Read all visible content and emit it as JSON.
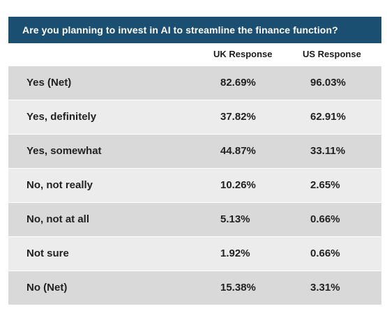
{
  "chart_data": {
    "type": "table",
    "title": "Are you planning to invest in AI to streamline the finance function?",
    "columns": [
      "UK Response",
      "US Response"
    ],
    "rows": [
      {
        "label": "Yes (Net)",
        "uk": "82.69%",
        "us": "96.03%"
      },
      {
        "label": "Yes, definitely",
        "uk": "37.82%",
        "us": "62.91%"
      },
      {
        "label": "Yes, somewhat",
        "uk": "44.87%",
        "us": "33.11%"
      },
      {
        "label": "No, not really",
        "uk": "10.26%",
        "us": "2.65%"
      },
      {
        "label": "No, not at all",
        "uk": "5.13%",
        "us": "0.66%"
      },
      {
        "label": "Not sure",
        "uk": "1.92%",
        "us": "0.66%"
      },
      {
        "label": "No (Net)",
        "uk": "15.38%",
        "us": "3.31%"
      }
    ]
  },
  "colors": {
    "title_bar": "#1b4f72",
    "title_text": "#ffffff",
    "row_shade_dark": "#d9d9d9",
    "row_shade_light": "#ececec"
  }
}
